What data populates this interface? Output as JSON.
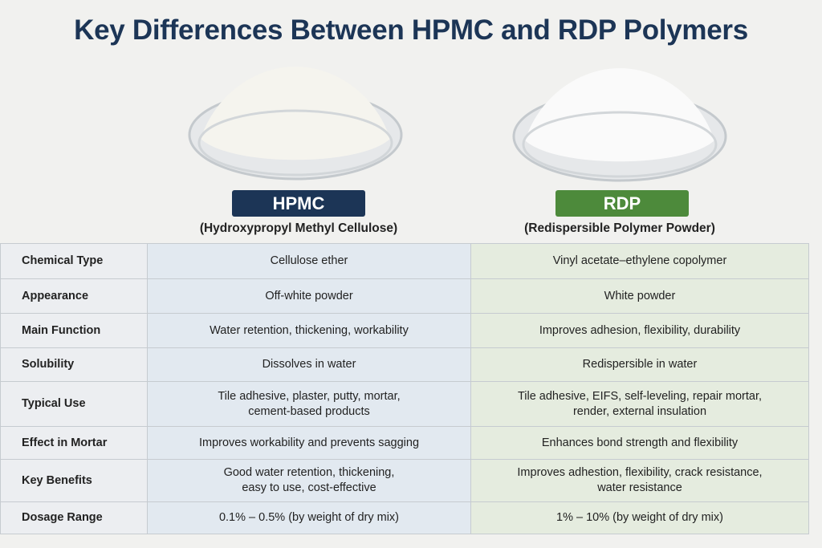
{
  "title": "Key Differences Between HPMC and RDP Polymers",
  "products": [
    {
      "name": "HPMC",
      "full_name": "(Hydroxypropyl Methyl Cellulose)"
    },
    {
      "name": "RDP",
      "full_name": "(Redispersible Polymer Powder)"
    }
  ],
  "table": {
    "rows": [
      [
        "Chemical Type",
        "Cellulose ether",
        "Vinyl acetate–ethylene copolymer"
      ],
      [
        "Appearance",
        "Off-white powder",
        "White powder"
      ],
      [
        "Main Function",
        "Water retention, thickening, workability",
        "Improves adhesion, flexibility, durability"
      ],
      [
        "Solubility",
        "Dissolves in water",
        "Redispersible in water"
      ],
      [
        "Typical Use",
        "Tile adhesive, plaster, putty, mortar,\ncement-based products",
        "Tile adhesive, EIFS, self-leveling, repair mortar,\nrender, external insulation"
      ],
      [
        "Effect in Mortar",
        "Improves workability and prevents sagging",
        "Enhances bond strength and flexibility"
      ],
      [
        "Key Benefits",
        "Good water retention, thickening,\neasy to use, cost-effective",
        "Improves adhestion, flexibility, crack resistance,\nwater resistance"
      ],
      [
        "Dosage Range",
        "0.1% – 0.5% (by weight of dry mix)",
        "1% – 10% (by weight of dry mix)"
      ]
    ]
  }
}
